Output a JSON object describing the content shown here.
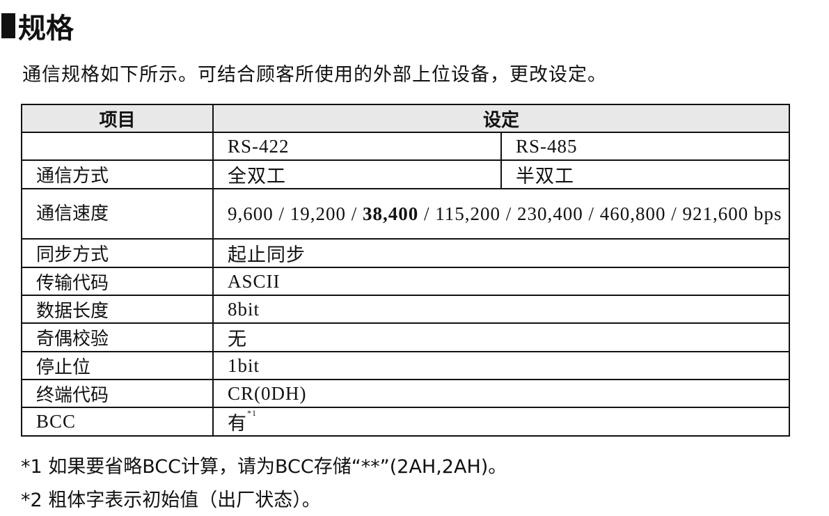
{
  "heading": "规格",
  "intro": "通信规格如下所示。可结合顾客所使用的外部上位设备，更改设定。",
  "table": {
    "headers": [
      "项目",
      "设定"
    ],
    "interfaces": [
      "RS-422",
      "RS-485"
    ],
    "comm_mode": {
      "label": "通信方式",
      "rs422": "全双工",
      "rs485": "半双工"
    },
    "speed": {
      "label": "通信速度",
      "before": "9,600 / 19,200 / ",
      "bold": "38,400",
      "after": " / 115,200 / 230,400 / 460,800 / 921,600 bps"
    },
    "rows": [
      {
        "label": "同步方式",
        "value": "起止同步"
      },
      {
        "label": "传输代码",
        "value": "ASCII"
      },
      {
        "label": "数据长度",
        "value": "8bit"
      },
      {
        "label": "奇偶校验",
        "value": "无"
      },
      {
        "label": "停止位",
        "value": "1bit"
      },
      {
        "label": "终端代码",
        "value": "CR(0DH)"
      }
    ],
    "bcc": {
      "label": "BCC",
      "value": "有",
      "note_ref": "*1"
    }
  },
  "notes": [
    "*1 如果要省略BCC计算，请为BCC存储“**”(2AH,2AH)。",
    "*2 粗体字表示初始值（出厂状态）。"
  ]
}
